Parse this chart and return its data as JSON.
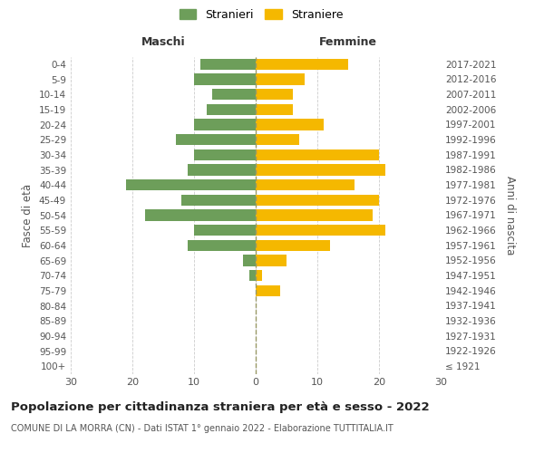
{
  "age_groups": [
    "100+",
    "95-99",
    "90-94",
    "85-89",
    "80-84",
    "75-79",
    "70-74",
    "65-69",
    "60-64",
    "55-59",
    "50-54",
    "45-49",
    "40-44",
    "35-39",
    "30-34",
    "25-29",
    "20-24",
    "15-19",
    "10-14",
    "5-9",
    "0-4"
  ],
  "birth_years": [
    "≤ 1921",
    "1922-1926",
    "1927-1931",
    "1932-1936",
    "1937-1941",
    "1942-1946",
    "1947-1951",
    "1952-1956",
    "1957-1961",
    "1962-1966",
    "1967-1971",
    "1972-1976",
    "1977-1981",
    "1982-1986",
    "1987-1991",
    "1992-1996",
    "1997-2001",
    "2002-2006",
    "2007-2011",
    "2012-2016",
    "2017-2021"
  ],
  "maschi": [
    0,
    0,
    0,
    0,
    0,
    0,
    1,
    2,
    11,
    10,
    18,
    12,
    21,
    11,
    10,
    13,
    10,
    8,
    7,
    10,
    9
  ],
  "femmine": [
    0,
    0,
    0,
    0,
    0,
    4,
    1,
    5,
    12,
    21,
    19,
    20,
    16,
    21,
    20,
    7,
    11,
    6,
    6,
    8,
    15
  ],
  "color_maschi": "#6d9e5a",
  "color_femmine": "#f5b800",
  "bar_height": 0.75,
  "xlim": 30,
  "title": "Popolazione per cittadinanza straniera per età e sesso - 2022",
  "subtitle": "COMUNE DI LA MORRA (CN) - Dati ISTAT 1° gennaio 2022 - Elaborazione TUTTITALIA.IT",
  "xlabel_left": "Maschi",
  "xlabel_right": "Femmine",
  "ylabel_left": "Fasce di età",
  "ylabel_right": "Anni di nascita",
  "legend_stranieri": "Stranieri",
  "legend_straniere": "Straniere",
  "background_color": "#ffffff",
  "grid_color": "#cccccc",
  "text_color": "#555555"
}
